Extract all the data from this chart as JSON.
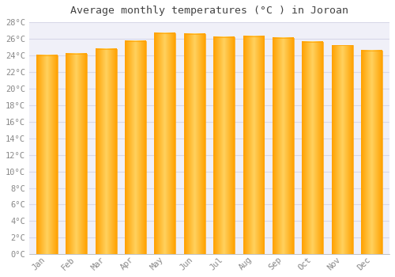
{
  "title": "Average monthly temperatures (°C ) in Joroan",
  "months": [
    "Jan",
    "Feb",
    "Mar",
    "Apr",
    "May",
    "Jun",
    "Jul",
    "Aug",
    "Sep",
    "Oct",
    "Nov",
    "Dec"
  ],
  "values": [
    24.0,
    24.2,
    24.8,
    25.7,
    26.7,
    26.6,
    26.2,
    26.3,
    26.1,
    25.6,
    25.2,
    24.6
  ],
  "bar_color_center": "#FFD060",
  "bar_color_edge": "#FFA000",
  "background_color": "#FFFFFF",
  "plot_bg_color": "#F0F0F8",
  "grid_color": "#D8D8E8",
  "text_color": "#888888",
  "title_color": "#444444",
  "ylim": [
    0,
    28
  ],
  "ytick_step": 2,
  "title_fontsize": 9.5,
  "tick_fontsize": 7.5,
  "bar_width": 0.72
}
